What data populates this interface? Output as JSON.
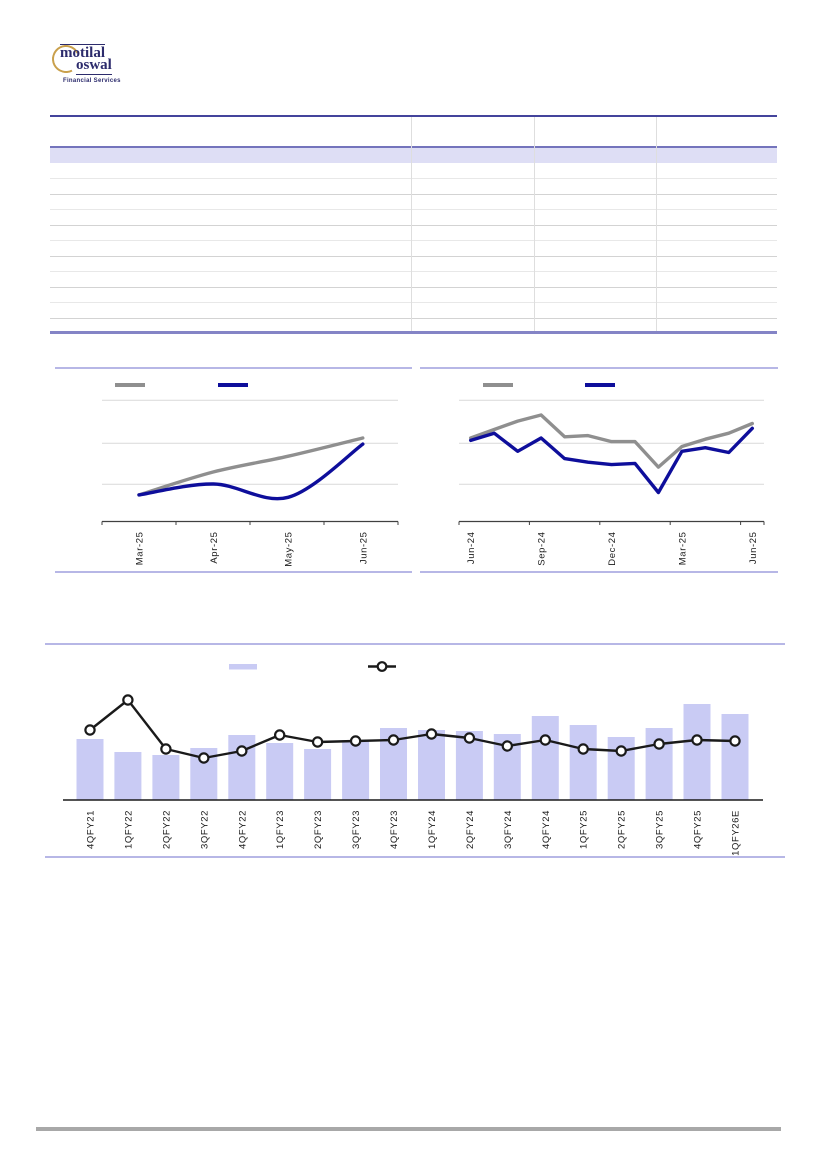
{
  "page": {
    "background": "#FFFFFF",
    "accent_indigo": "#44449C",
    "panel_border": "#B7B7E6",
    "footer_rule_color": "#A8A8A8"
  },
  "logo": {
    "line1": "motilal",
    "line2": "oswal",
    "caption": "Financial Services",
    "text_color": "#2C2B6C",
    "ring_color": "#C9A04C"
  },
  "table": {
    "text_visible": false,
    "highlight_row_color": "#DEDEF5",
    "top_border_color": "#44449C",
    "subheader_line_color": "#9B9BD2",
    "header_line_color": "#7474BC",
    "bottom_border_color": "#8484C6",
    "row_line_colors": [
      "#E8E8E8",
      "#D3D3D3"
    ],
    "column_divider_color": "#DEDEDE"
  },
  "chart_data": [
    {
      "id": "recent-trend-line-chart",
      "type": "line",
      "x_tick_labels": [
        "Mar-25",
        "Apr-25",
        "May-25",
        "Jun-25"
      ],
      "x_axis_labels_visible": true,
      "y_axis_labels_visible": false,
      "value_scale": "relative-estimate",
      "ylim": [
        0,
        110
      ],
      "grid": true,
      "legend_position": "top",
      "legend_labels_visible": false,
      "series": [
        {
          "name": "gray-series",
          "color": "#8F8F8F",
          "values": [
            22,
            41,
            54,
            69
          ]
        },
        {
          "name": "navy-series",
          "color": "#0E0E9B",
          "values": [
            22,
            31,
            20,
            64
          ]
        }
      ]
    },
    {
      "id": "one-year-trend-line-chart",
      "type": "line",
      "n_points": 13,
      "x_tick_labels": [
        "Jun-24",
        "Sep-24",
        "Dec-24",
        "Mar-25",
        "Jun-25"
      ],
      "x_tick_point_indices": [
        0,
        3,
        6,
        9,
        12
      ],
      "x_axis_labels_visible": true,
      "y_axis_labels_visible": false,
      "value_scale": "relative-estimate",
      "ylim": [
        0,
        110
      ],
      "grid": true,
      "legend_position": "top",
      "legend_labels_visible": false,
      "series": [
        {
          "name": "gray-series",
          "color": "#8F8F8F",
          "values": [
            69,
            76,
            83,
            88,
            70,
            71,
            66,
            66,
            45,
            62,
            68,
            73,
            81
          ]
        },
        {
          "name": "navy-series",
          "color": "#0E0E9B",
          "values": [
            67,
            73,
            58,
            69,
            52,
            49,
            47,
            48,
            24,
            58,
            61,
            57,
            77
          ]
        }
      ]
    },
    {
      "id": "quarterly-bar-and-marker-line-chart",
      "type": "bar",
      "categories": [
        "4QFY21",
        "1QFY22",
        "2QFY22",
        "3QFY22",
        "4QFY22",
        "1QFY23",
        "2QFY23",
        "3QFY23",
        "4QFY23",
        "1QFY24",
        "2QFY24",
        "3QFY24",
        "4QFY24",
        "1QFY25",
        "2QFY25",
        "3QFY25",
        "4QFY25",
        "1QFY26E"
      ],
      "x_axis_labels_visible": true,
      "y_axis_labels_visible": false,
      "value_scale": "relative-estimate",
      "ylim": [
        0,
        110
      ],
      "grid": false,
      "legend_position": "top",
      "legend_labels_visible": false,
      "series": [
        {
          "name": "bar-series",
          "type": "bar",
          "color": "#C9CBF4",
          "values": [
            61,
            48,
            45,
            52,
            65,
            57,
            51,
            60,
            72,
            70,
            69,
            66,
            84,
            75,
            63,
            72,
            96,
            86
          ]
        },
        {
          "name": "marker-line-series",
          "type": "line",
          "color": "#1A1A1A",
          "marker": "open-circle",
          "marker_fill": "#FFFFFF",
          "values": [
            70,
            100,
            51,
            42,
            49,
            65,
            58,
            59,
            60,
            66,
            62,
            54,
            60,
            51,
            49,
            56,
            60,
            59
          ]
        }
      ]
    }
  ]
}
